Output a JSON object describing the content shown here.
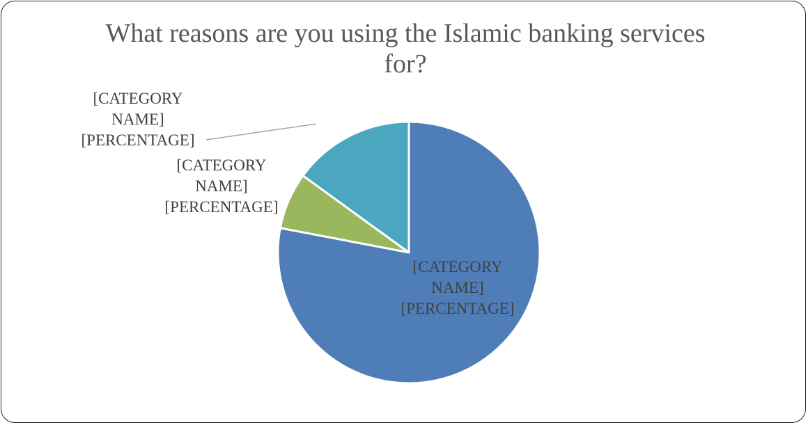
{
  "chart_data": {
    "type": "pie",
    "title": "What reasons are you using the Islamic banking services for?",
    "categories": [
      "[CATEGORY NAME]",
      "[CATEGORY NAME]",
      "[CATEGORY NAME]"
    ],
    "values": [
      78,
      7,
      15
    ],
    "labels": [
      [
        "[CATEGORY",
        "NAME]",
        "[PERCENTAGE]"
      ],
      [
        "[CATEGORY",
        "NAME]",
        "[PERCENTAGE]"
      ],
      [
        "[CATEGORY",
        "NAME]",
        "[PERCENTAGE]"
      ]
    ],
    "colors": [
      "#4f7db8",
      "#9bb75e",
      "#4ba6c0"
    ],
    "slice_border_color": "#ffffff",
    "leader_line_color": "#a6a6a6"
  }
}
